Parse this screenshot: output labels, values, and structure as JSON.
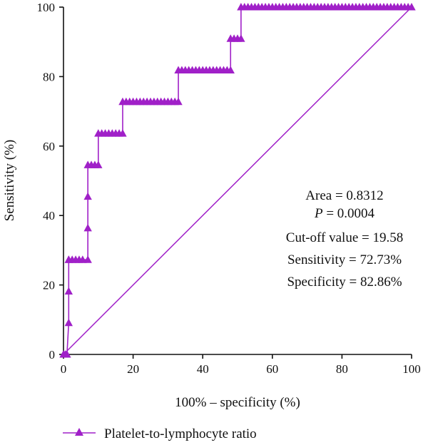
{
  "chart_data": {
    "type": "line",
    "xlabel": "100% – specificity (%)",
    "ylabel": "Sensitivity (%)",
    "xlim": [
      0,
      100
    ],
    "ylim": [
      0,
      100
    ],
    "xticks": [
      0,
      20,
      40,
      60,
      80,
      100
    ],
    "yticks": [
      0,
      20,
      40,
      60,
      80,
      100
    ],
    "grid": false,
    "legend_position": "bottom",
    "series": [
      {
        "name": "Platelet-to-lymphocyte ratio",
        "color": "#a020c8",
        "marker": "triangle",
        "x": [
          0,
          0.5,
          1,
          1.5,
          1.5,
          1.5,
          1.5,
          2.5,
          3.5,
          4.5,
          5.5,
          7,
          7,
          7,
          7,
          8,
          9,
          10,
          10,
          11,
          12,
          13,
          14,
          15,
          16,
          17,
          17,
          18,
          19,
          20,
          21,
          22,
          23,
          24,
          25,
          26,
          27,
          28,
          29,
          30,
          31,
          32,
          33,
          33,
          34,
          35,
          36,
          37,
          38,
          39,
          40,
          41,
          42,
          43,
          44,
          45,
          46,
          47,
          48,
          48,
          49,
          50,
          51,
          51,
          52,
          53,
          54,
          55,
          56,
          57,
          58,
          59,
          60,
          61,
          62,
          63,
          64,
          65,
          66,
          67,
          68,
          69,
          70,
          71,
          72,
          73,
          74,
          75,
          76,
          77,
          78,
          79,
          80,
          81,
          82,
          83,
          84,
          85,
          86,
          87,
          88,
          89,
          90,
          91,
          92,
          93,
          94,
          95,
          96,
          97,
          98,
          99,
          100
        ],
        "y": [
          0,
          0,
          0,
          9.09,
          18.18,
          27.27,
          27.27,
          27.27,
          27.27,
          27.27,
          27.27,
          27.27,
          36.36,
          45.45,
          54.55,
          54.55,
          54.55,
          54.55,
          63.64,
          63.64,
          63.64,
          63.64,
          63.64,
          63.64,
          63.64,
          63.64,
          72.73,
          72.73,
          72.73,
          72.73,
          72.73,
          72.73,
          72.73,
          72.73,
          72.73,
          72.73,
          72.73,
          72.73,
          72.73,
          72.73,
          72.73,
          72.73,
          72.73,
          81.82,
          81.82,
          81.82,
          81.82,
          81.82,
          81.82,
          81.82,
          81.82,
          81.82,
          81.82,
          81.82,
          81.82,
          81.82,
          81.82,
          81.82,
          81.82,
          90.91,
          90.91,
          90.91,
          90.91,
          100,
          100,
          100,
          100,
          100,
          100,
          100,
          100,
          100,
          100,
          100,
          100,
          100,
          100,
          100,
          100,
          100,
          100,
          100,
          100,
          100,
          100,
          100,
          100,
          100,
          100,
          100,
          100,
          100,
          100,
          100,
          100,
          100,
          100,
          100,
          100,
          100,
          100,
          100,
          100,
          100,
          100,
          100,
          100,
          100,
          100,
          100,
          100,
          100,
          100
        ]
      },
      {
        "name": "",
        "color": "#a020c8",
        "marker": "none",
        "x": [
          0,
          100
        ],
        "y": [
          0,
          100
        ]
      }
    ],
    "annotations": [
      "Area = 0.8312",
      "P = 0.0004",
      "Cut-off value = 19.58",
      "Sensitivity = 72.73%",
      "Specificity = 82.86%"
    ]
  },
  "annotation_p_letter": "P",
  "annotation_p_value": " = 0.0004"
}
